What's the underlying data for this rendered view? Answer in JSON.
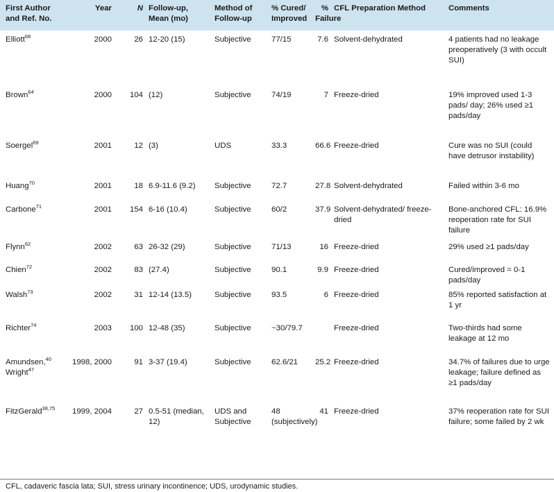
{
  "table": {
    "header": [
      "First Author and Ref. No.",
      "Year",
      "N",
      "Follow-up, Mean (mo)",
      "Method of Follow-up",
      "% Cured/ Improved",
      "% Failure",
      "CFL Preparation Method",
      "Comments"
    ],
    "rows": [
      [
        [
          {
            "text": "Elliott",
            "sup": "68"
          }
        ],
        "2000",
        "26",
        "12-20 (15)",
        "Subjective",
        "77/15",
        "7.6",
        "Solvent-dehydrated",
        "4 patients had no leakage preoperatively (3 with occult SUI)"
      ],
      [
        [
          {
            "text": "Brown",
            "sup": "64"
          }
        ],
        "2000",
        "104",
        "(12)",
        "Subjective",
        "74/19",
        "7",
        "Freeze-dried",
        "19% improved used 1-3 pads/ day; 26% used ≥1 pads/day"
      ],
      [
        [
          {
            "text": "Soergel",
            "sup": "69"
          }
        ],
        "2001",
        "12",
        "(3)",
        "UDS",
        "33.3",
        "66.6",
        "Freeze-dried",
        "Cure was no SUI (could have detrusor instability)"
      ],
      [
        [
          {
            "text": "Huang",
            "sup": "70"
          }
        ],
        "2001",
        "18",
        "6.9-11.6 (9.2)",
        "Subjective",
        "72.7",
        "27.8",
        "Solvent-dehydrated",
        "Failed within 3-6 mo"
      ],
      [
        [
          {
            "text": "Carbone",
            "sup": "71"
          }
        ],
        "2001",
        "154",
        "6-16 (10.4)",
        "Subjective",
        "60/2",
        "37.9",
        "Solvent-dehydrated/ freeze-dried",
        "Bone-anchored CFL: 16.9% reoperation rate for SUI failure"
      ],
      [
        [
          {
            "text": "Flynn",
            "sup": "62"
          }
        ],
        "2002",
        "63",
        "26-32 (29)",
        "Subjective",
        "71/13",
        "16",
        "Freeze-dried",
        "29% used ≥1 pads/day"
      ],
      [
        [
          {
            "text": "Chien",
            "sup": "72"
          }
        ],
        "2002",
        "83",
        "(27.4)",
        "Subjective",
        "90.1",
        "9.9",
        "Freeze-dried",
        "Cured/improved = 0-1 pads/day"
      ],
      [
        [
          {
            "text": "Walsh",
            "sup": "73"
          }
        ],
        "2002",
        "31",
        "12-14 (13.5)",
        "Subjective",
        "93.5",
        "6",
        "Freeze-dried",
        "85% reported satisfaction at 1 yr"
      ],
      [
        [
          {
            "text": "Richter",
            "sup": "74"
          }
        ],
        "2003",
        "100",
        "12-48 (35)",
        "Subjective",
        "~30/79.7",
        null,
        "Freeze-dried",
        "Two-thirds had some leakage at 12 mo"
      ],
      [
        [
          {
            "text": "Amundsen,",
            "sup": "40"
          },
          {
            "text": "Wright",
            "sup": "47"
          }
        ],
        "1998, 2000",
        "91",
        "3-37 (19.4)",
        "Subjective",
        "62.6/21",
        "25.2",
        "Freeze-dried",
        "34.7% of failures due to urge leakage; failure defined as ≥1 pads/day"
      ],
      [
        [
          {
            "text": "FitzGerald",
            "sup": "38,75"
          }
        ],
        "1999, 2004",
        "27",
        "0.5-51 (median, 12)",
        "UDS and Subjective",
        "48 (subjectively)",
        "41",
        "Freeze-dried",
        "37% reoperation rate for SUI failure; some failed by 2 wk"
      ]
    ]
  },
  "footnote": "CFL, cadaveric fascia lata; SUI, stress urinary incontinence; UDS, urodynamic studies."
}
